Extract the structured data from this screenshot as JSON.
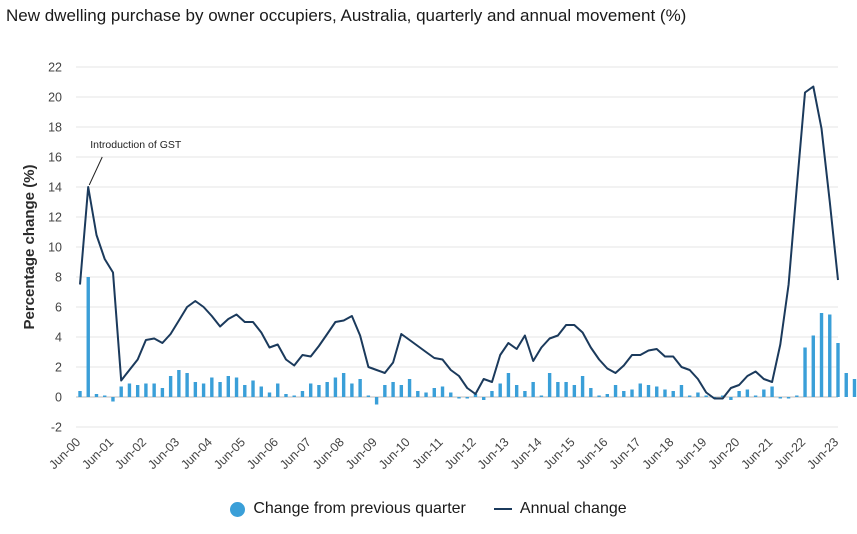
{
  "chart_data": {
    "type": "bar",
    "title": "New dwelling purchase by owner occupiers, Australia, quarterly and annual movement (%)",
    "ylabel": "Percentage change (%)",
    "ylim": [
      -2,
      22
    ],
    "yticks": [
      -2,
      0,
      2,
      4,
      6,
      8,
      10,
      12,
      14,
      16,
      18,
      20,
      22
    ],
    "xtick_labels": [
      "Jun-00",
      "Jun-01",
      "Jun-02",
      "Jun-03",
      "Jun-04",
      "Jun-05",
      "Jun-06",
      "Jun-07",
      "Jun-08",
      "Jun-09",
      "Jun-10",
      "Jun-11",
      "Jun-12",
      "Jun-13",
      "Jun-14",
      "Jun-15",
      "Jun-16",
      "Jun-17",
      "Jun-18",
      "Jun-19",
      "Jun-20",
      "Jun-21",
      "Jun-22",
      "Jun-23"
    ],
    "annotation": {
      "text": "Introduction of GST",
      "target_index": 1
    },
    "grid": true,
    "legend_position": "bottom",
    "series": [
      {
        "name": "Change from previous quarter",
        "type": "bar",
        "color": "#3a9fd8",
        "values": [
          0.4,
          8.0,
          0.2,
          0.1,
          -0.3,
          0.7,
          0.9,
          0.8,
          0.9,
          0.9,
          0.6,
          1.4,
          1.8,
          1.6,
          1.0,
          0.9,
          1.3,
          1.0,
          1.4,
          1.3,
          0.8,
          1.1,
          0.7,
          0.3,
          0.9,
          0.2,
          0.1,
          0.4,
          0.9,
          0.8,
          1.0,
          1.3,
          1.6,
          0.9,
          1.2,
          0.1,
          -0.5,
          0.8,
          1.0,
          0.8,
          1.2,
          0.4,
          0.3,
          0.6,
          0.7,
          0.3,
          -0.1,
          -0.1,
          0.2,
          -0.2,
          0.4,
          0.9,
          1.6,
          0.8,
          0.4,
          1.0,
          0.1,
          1.6,
          1.0,
          1.0,
          0.8,
          1.4,
          0.6,
          0.1,
          0.2,
          0.8,
          0.4,
          0.5,
          0.9,
          0.8,
          0.7,
          0.5,
          0.4,
          0.8,
          0.1,
          0.3,
          0.1,
          -0.1,
          0.1,
          -0.2,
          0.4,
          0.5,
          0.1,
          0.5,
          0.7,
          -0.1,
          -0.1,
          0.1,
          3.3,
          4.1,
          5.6,
          5.5,
          3.6,
          1.6,
          1.2,
          1.0
        ]
      },
      {
        "name": "Annual change",
        "type": "line",
        "color": "#1b3a5c",
        "values": [
          7.5,
          14.0,
          10.8,
          9.2,
          8.3,
          1.1,
          1.8,
          2.5,
          3.8,
          3.9,
          3.6,
          4.2,
          5.1,
          6.0,
          6.4,
          6.0,
          5.4,
          4.7,
          5.2,
          5.5,
          5.0,
          5.0,
          4.3,
          3.3,
          3.5,
          2.5,
          2.1,
          2.8,
          2.7,
          3.4,
          4.2,
          5.0,
          5.1,
          5.4,
          4.1,
          2.0,
          1.8,
          1.6,
          2.3,
          4.2,
          3.8,
          3.4,
          3.0,
          2.6,
          2.5,
          1.8,
          1.4,
          0.6,
          0.2,
          1.2,
          1.0,
          2.8,
          3.6,
          3.2,
          4.1,
          2.4,
          3.3,
          3.9,
          4.1,
          4.8,
          4.8,
          4.3,
          3.3,
          2.5,
          1.9,
          1.6,
          2.1,
          2.8,
          2.8,
          3.1,
          3.2,
          2.7,
          2.7,
          2.0,
          1.8,
          1.2,
          0.3,
          -0.1,
          -0.1,
          0.6,
          0.8,
          1.4,
          1.7,
          1.2,
          1.0,
          3.5,
          7.5,
          14.0,
          20.3,
          20.7,
          17.9,
          13.0,
          7.8
        ]
      }
    ]
  }
}
